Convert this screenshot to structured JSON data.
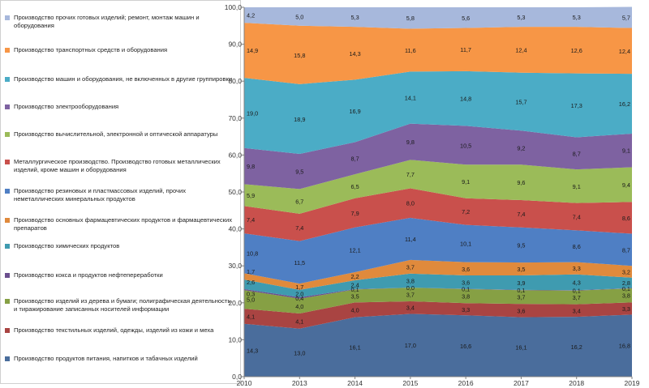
{
  "chart_data": {
    "type": "area",
    "stacked": true,
    "x": [
      "2010",
      "2013",
      "2014",
      "2015",
      "2016",
      "2017",
      "2018",
      "2019"
    ],
    "ylim": [
      0,
      100
    ],
    "yticks": [
      "0,0",
      "10,0",
      "20,0",
      "30,0",
      "40,0",
      "50,0",
      "60,0",
      "70,0",
      "80,0",
      "90,0",
      "100,0"
    ],
    "legend_position": "left",
    "grid": false,
    "series": [
      {
        "name": "Производство продуктов питания, напитков и табачных изделий",
        "color": "#4a6d9c",
        "values": [
          14.3,
          13.0,
          16.1,
          17.0,
          16.6,
          16.1,
          16.2,
          16.8
        ],
        "labels": [
          "14,3",
          "13,0",
          "16,1",
          "17,0",
          "16,6",
          "16,1",
          "16,2",
          "16,8"
        ]
      },
      {
        "name": "Производство текстильных изделий, одежды, изделий из кожи и меха",
        "color": "#a94442",
        "values": [
          4.1,
          4.1,
          4.0,
          3.4,
          3.3,
          3.6,
          3.4,
          3.3
        ],
        "labels": [
          "4,1",
          "4,1",
          "4,0",
          "3,4",
          "3,3",
          "3,6",
          "3,4",
          "3,3"
        ]
      },
      {
        "name": "Производство изделий из дерева и бумаги; полиграфическая деятельность и тиражирование записанных носителей информации",
        "color": "#86a044",
        "values": [
          5.0,
          4.0,
          3.5,
          3.7,
          3.8,
          3.7,
          3.7,
          3.8
        ],
        "labels": [
          "5,0",
          "4,0",
          "3,5",
          "3,7",
          "3,8",
          "3,7",
          "3,7",
          "3,8"
        ]
      },
      {
        "name": "Производство кокса и продуктов нефтепереработки",
        "color": "#6b4f8e",
        "values": [
          0.3,
          0.4,
          0.1,
          0.0,
          0.1,
          0.1,
          0.1,
          0.1
        ],
        "labels": [
          "0,3",
          "0,4",
          "0,1",
          "0,0",
          "0,1",
          "0,1",
          "0,1",
          "0,1"
        ]
      },
      {
        "name": "Производство химических продуктов",
        "color": "#3f9bb0",
        "values": [
          2.6,
          2.0,
          2.4,
          3.8,
          3.6,
          3.9,
          4.3,
          2.8
        ],
        "labels": [
          "2,6",
          "2,0",
          "2,4",
          "3,8",
          "3,6",
          "3,9",
          "4,3",
          "2,8"
        ]
      },
      {
        "name": "Производство основных фармацевтических продуктов и фармацевтических препаратов",
        "color": "#e08a3c",
        "values": [
          1.7,
          1.7,
          2.2,
          3.7,
          3.6,
          3.5,
          3.3,
          3.2
        ],
        "labels": [
          "1,7",
          "1,7",
          "2,2",
          "3,7",
          "3,6",
          "3,5",
          "3,3",
          "3,2"
        ]
      },
      {
        "name": "Производство резиновых и пластмассовых изделий, прочих неметаллических минеральных продуктов",
        "color": "#4f7fc4",
        "values": [
          10.8,
          11.5,
          12.1,
          11.4,
          10.1,
          9.5,
          8.6,
          8.7
        ],
        "labels": [
          "10,8",
          "11,5",
          "12,1",
          "11,4",
          "10,1",
          "9,5",
          "8,6",
          "8,7"
        ]
      },
      {
        "name": "Металлургическое производство. Производство готовых металлических изделий, кроме машин и оборудования",
        "color": "#c9504c",
        "values": [
          7.4,
          7.4,
          7.9,
          8.0,
          7.2,
          7.4,
          7.4,
          8.6
        ],
        "labels": [
          "7,4",
          "7,4",
          "7,9",
          "8,0",
          "7,2",
          "7,4",
          "7,4",
          "8,6"
        ]
      },
      {
        "name": "Производство вычислительной, электронной и оптической аппаратуры",
        "color": "#9bbb59",
        "values": [
          5.9,
          6.7,
          6.5,
          7.7,
          9.1,
          9.6,
          9.1,
          9.4
        ],
        "labels": [
          "5,9",
          "6,7",
          "6,5",
          "7,7",
          "9,1",
          "9,6",
          "9,1",
          "9,4"
        ]
      },
      {
        "name": "Производство электрооборудования",
        "color": "#7e62a1",
        "values": [
          9.8,
          9.5,
          8.7,
          9.8,
          10.5,
          9.2,
          8.7,
          9.1
        ],
        "labels": [
          "9,8",
          "9,5",
          "8,7",
          "9,8",
          "10,5",
          "9,2",
          "8,7",
          "9,1"
        ]
      },
      {
        "name": "Производство машин и оборудования, не включенных в другие группировки",
        "color": "#4bacc6",
        "values": [
          19.0,
          18.9,
          16.9,
          14.1,
          14.8,
          15.7,
          17.3,
          16.2
        ],
        "labels": [
          "19,0",
          "18,9",
          "16,9",
          "14,1",
          "14,8",
          "15,7",
          "17,3",
          "16,2"
        ]
      },
      {
        "name": "Производство транспортных средств и оборудования",
        "color": "#f79646",
        "values": [
          14.9,
          15.8,
          14.3,
          11.6,
          11.7,
          12.4,
          12.6,
          12.4
        ],
        "labels": [
          "14,9",
          "15,8",
          "14,3",
          "11,6",
          "11,7",
          "12,4",
          "12,6",
          "12,4"
        ]
      },
      {
        "name": "Производство прочих готовых изделий; ремонт, монтаж машин и оборудования",
        "color": "#a7b8dc",
        "values": [
          4.2,
          5.0,
          5.3,
          5.8,
          5.6,
          5.3,
          5.3,
          5.7
        ],
        "labels": [
          "4,2",
          "5,0",
          "5,3",
          "5,8",
          "5,6",
          "5,3",
          "5,3",
          "5,7"
        ]
      }
    ]
  }
}
